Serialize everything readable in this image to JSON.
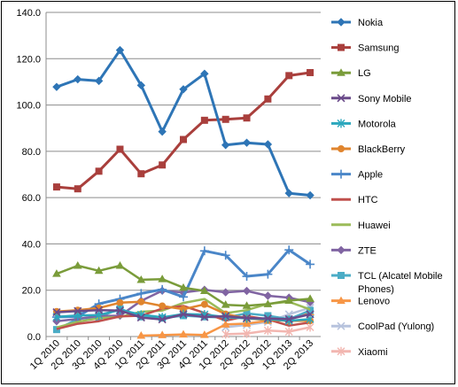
{
  "chart_data": {
    "type": "line",
    "title": "",
    "xlabel": "",
    "ylabel": "",
    "ylim": [
      0,
      140
    ],
    "yticks": [
      "0.0",
      "20.0",
      "40.0",
      "60.0",
      "80.0",
      "100.0",
      "120.0",
      "140.0"
    ],
    "grid": "horizontal",
    "legend_position": "right",
    "categories": [
      "1Q 2010",
      "2Q 2010",
      "3Q 2010",
      "4Q 2010",
      "1Q 2011",
      "2Q 2011",
      "3Q 2011",
      "4Q 2011",
      "1Q 2012",
      "2Q 2012",
      "3Q 2012",
      "1Q 2013",
      "2Q 2013"
    ],
    "series": [
      {
        "name": "Nokia",
        "color": "#2e75b6",
        "marker": "diamond",
        "values": [
          107.8,
          111.1,
          110.4,
          123.7,
          108.5,
          88.5,
          106.8,
          113.5,
          82.7,
          83.7,
          83.0,
          61.9,
          61.0
        ]
      },
      {
        "name": "Samsung",
        "color": "#a93f3c",
        "marker": "square",
        "values": [
          64.6,
          63.8,
          71.4,
          80.9,
          70.3,
          74.1,
          85.1,
          93.4,
          93.8,
          94.4,
          102.6,
          112.7,
          114.0
        ]
      },
      {
        "name": "LG",
        "color": "#7a9c3a",
        "marker": "triangle",
        "values": [
          27.1,
          30.6,
          28.4,
          30.6,
          24.5,
          24.8,
          21.1,
          19.7,
          13.7,
          13.3,
          14.0,
          15.5,
          16.3
        ]
      },
      {
        "name": "Sony Mobile",
        "color": "#6a4a8a",
        "marker": "x",
        "values": [
          10.5,
          11.0,
          11.4,
          11.2,
          8.2,
          7.4,
          9.6,
          8.4,
          8.8,
          8.0,
          7.8,
          7.5,
          9.6
        ]
      },
      {
        "name": "Motorola",
        "color": "#2ba7bd",
        "marker": "star",
        "values": [
          8.5,
          9.1,
          9.3,
          11.5,
          9.4,
          8.3,
          9.7,
          9.5,
          8.4,
          7.8,
          7.5,
          6.8,
          7.5
        ]
      },
      {
        "name": "BlackBerry",
        "color": "#e0852e",
        "marker": "circle",
        "values": [
          10.8,
          11.4,
          12.3,
          14.6,
          15.0,
          13.2,
          11.8,
          13.9,
          9.7,
          7.8,
          7.2,
          6.8,
          6.8
        ]
      },
      {
        "name": "Apple",
        "color": "#4a86c8",
        "marker": "plus",
        "values": [
          8.4,
          8.7,
          14.1,
          16.2,
          18.6,
          20.3,
          17.1,
          37.0,
          35.1,
          26.0,
          26.9,
          37.4,
          31.2
        ]
      },
      {
        "name": "HTC",
        "color": "#c0504d",
        "marker": "none",
        "values": [
          3.2,
          5.5,
          6.6,
          8.7,
          9.0,
          12.1,
          13.2,
          10.2,
          6.9,
          8.8,
          7.4,
          4.7,
          6.1
        ]
      },
      {
        "name": "Huawei",
        "color": "#9bbb59",
        "marker": "none",
        "values": [
          3.9,
          6.4,
          7.9,
          8.4,
          10.7,
          11.2,
          14.5,
          16.2,
          10.1,
          11.4,
          14.1,
          15.0,
          11.7
        ]
      },
      {
        "name": "ZTE",
        "color": "#8064a2",
        "marker": "diamond",
        "values": [
          6.6,
          7.6,
          8.9,
          9.0,
          15.4,
          19.8,
          19.0,
          20.2,
          19.1,
          19.7,
          17.6,
          16.8,
          14.8
        ]
      },
      {
        "name": "TCL (Alcatel Mobile Phones)",
        "color": "#4bacc6",
        "marker": "square",
        "values": [
          3.0,
          7.6,
          8.4,
          12.0,
          8.5,
          8.0,
          9.0,
          8.5,
          8.2,
          10.0,
          9.0,
          7.5,
          11.3
        ]
      },
      {
        "name": "Lenovo",
        "color": "#f79646",
        "marker": "triangle",
        "values": [
          null,
          null,
          null,
          null,
          0.4,
          0.6,
          0.9,
          0.7,
          5.2,
          5.6,
          6.8,
          7.5,
          10.5
        ]
      },
      {
        "name": "CoolPad (Yulong)",
        "color": "#b7c3dd",
        "marker": "x",
        "values": [
          null,
          null,
          null,
          null,
          null,
          null,
          null,
          null,
          4.0,
          5.0,
          6.3,
          9.6,
          12.4
        ]
      },
      {
        "name": "Xiaomi",
        "color": "#f2b6b0",
        "marker": "star",
        "values": [
          null,
          null,
          null,
          null,
          null,
          null,
          null,
          null,
          1.0,
          1.3,
          2.6,
          2.1,
          4.0
        ]
      }
    ]
  }
}
